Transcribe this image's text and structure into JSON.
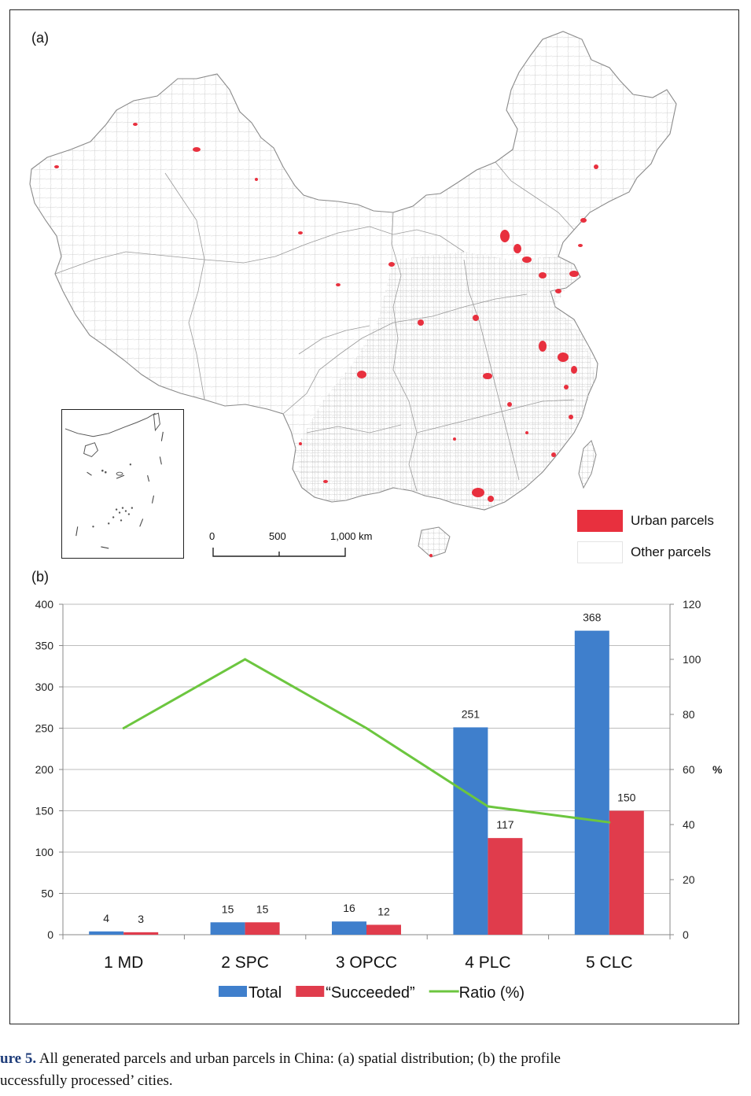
{
  "panel_a": {
    "label": "(a)",
    "legend": [
      {
        "label": "Urban parcels",
        "color": "#e8303e"
      },
      {
        "label": "Other parcels",
        "color": "#ffffff"
      }
    ],
    "scale_bar": {
      "ticks": [
        "0",
        "500",
        "1,000 km"
      ]
    }
  },
  "panel_b": {
    "label": "(b)"
  },
  "chart_data": {
    "type": "bar",
    "categories": [
      "1 MD",
      "2 SPC",
      "3 OPCC",
      "4 PLC",
      "5 CLC"
    ],
    "series": [
      {
        "name": "Total",
        "type": "bar",
        "color": "#3f7fcc",
        "values": [
          4,
          15,
          16,
          251,
          368
        ]
      },
      {
        "name": "“Succeeded”",
        "type": "bar",
        "color": "#e03c4c",
        "values": [
          3,
          15,
          12,
          117,
          150
        ]
      },
      {
        "name": "Ratio (%)",
        "type": "line",
        "color": "#6cc63f",
        "axis": "right",
        "values": [
          75,
          100,
          75,
          46.6,
          40.8
        ]
      }
    ],
    "y_left": {
      "ylim": [
        0,
        400
      ],
      "ticks": [
        "0",
        "50",
        "100",
        "150",
        "200",
        "250",
        "300",
        "350",
        "400"
      ]
    },
    "y_right": {
      "ylim": [
        0,
        120
      ],
      "ticks": [
        "0",
        "20",
        "40",
        "60",
        "80",
        "100",
        "120"
      ],
      "label": "%"
    },
    "grid": true,
    "legend_position": "bottom"
  },
  "caption": {
    "figure_number": "ure 5.",
    "line1": "All generated parcels and urban parcels in China: (a) spatial distribution; (b) the profile",
    "line2": "uccessfully processed’ cities."
  }
}
